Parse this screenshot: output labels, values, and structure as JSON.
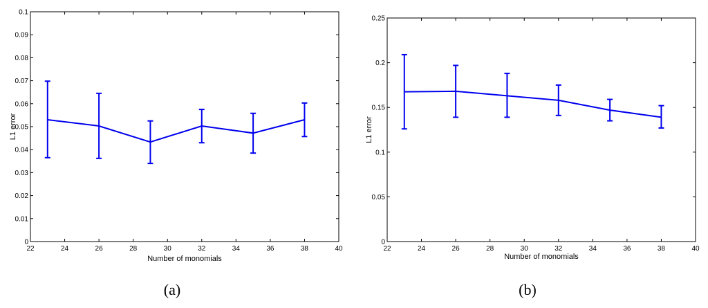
{
  "colors": {
    "series": "#0000ee",
    "axis": "#000000",
    "background": "#ffffff"
  },
  "chart_data": [
    {
      "type": "line",
      "caption": "(a)",
      "xlabel": "Number of monomials",
      "ylabel": "L1 error",
      "xlim": [
        22,
        40
      ],
      "ylim": [
        0,
        0.1
      ],
      "xticks": [
        "22",
        "24",
        "26",
        "28",
        "30",
        "32",
        "34",
        "36",
        "38",
        "40"
      ],
      "yticks": [
        "0",
        "0.01",
        "0.02",
        "0.03",
        "0.04",
        "0.05",
        "0.06",
        "0.07",
        "0.08",
        "0.09",
        "0.1"
      ],
      "grid": false,
      "series": [
        {
          "x": [
            23,
            26,
            29,
            32,
            35,
            38
          ],
          "y": [
            0.053,
            0.0503,
            0.0433,
            0.0503,
            0.0472,
            0.053
          ],
          "error_low": [
            0.0365,
            0.0362,
            0.034,
            0.043,
            0.0385,
            0.0457
          ],
          "error_high": [
            0.0698,
            0.0645,
            0.0525,
            0.0575,
            0.0558,
            0.0603
          ]
        }
      ]
    },
    {
      "type": "line",
      "caption": "(b)",
      "xlabel": "Number of monomials",
      "ylabel": "L1 error",
      "xlim": [
        22,
        40
      ],
      "ylim": [
        0,
        0.25
      ],
      "xticks": [
        "22",
        "24",
        "26",
        "28",
        "30",
        "32",
        "34",
        "36",
        "38",
        "40"
      ],
      "yticks": [
        "0",
        "0.05",
        "0.1",
        "0.15",
        "0.2",
        "0.25"
      ],
      "grid": false,
      "series": [
        {
          "x": [
            23,
            26,
            29,
            32,
            35,
            38
          ],
          "y": [
            0.1675,
            0.168,
            0.163,
            0.158,
            0.147,
            0.139
          ],
          "error_low": [
            0.126,
            0.139,
            0.139,
            0.141,
            0.135,
            0.127
          ],
          "error_high": [
            0.209,
            0.197,
            0.188,
            0.175,
            0.159,
            0.152
          ]
        }
      ]
    }
  ]
}
